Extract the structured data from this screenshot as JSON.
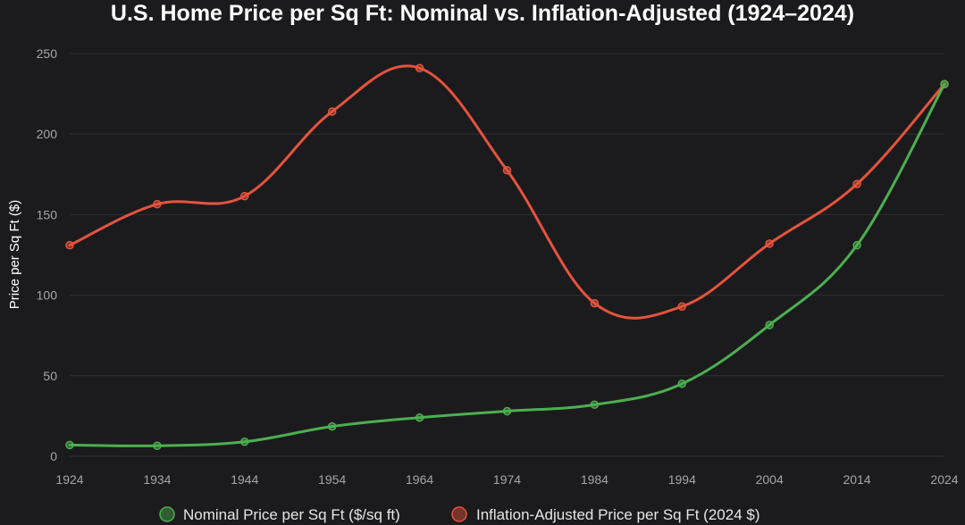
{
  "colors": {
    "background": "#1b1b1d",
    "nominal": "#4caf50",
    "adjusted": "#e5533d",
    "grid": "#2f2f33"
  },
  "chart_data": {
    "type": "line",
    "title": "U.S. Home Price per Sq Ft: Nominal vs. Inflation-Adjusted (1924–2024)",
    "xlabel": "",
    "ylabel": "Price per Sq Ft ($)",
    "categories": [
      "1924",
      "1934",
      "1944",
      "1954",
      "1964",
      "1974",
      "1984",
      "1994",
      "2004",
      "2014",
      "2024"
    ],
    "ylim": [
      0,
      250
    ],
    "yticks": [
      "0",
      "50",
      "100",
      "150",
      "200",
      "250"
    ],
    "grid": true,
    "legend_position": "bottom",
    "series": [
      {
        "name": "Nominal Price per Sq Ft ($/sq ft)",
        "color": "#4caf50",
        "values": [
          7,
          6.5,
          9,
          18.5,
          24,
          28,
          32,
          45,
          81.5,
          131,
          231
        ]
      },
      {
        "name": "Inflation-Adjusted Price per Sq Ft (2024 $)",
        "color": "#e5533d",
        "values": [
          131,
          156.5,
          161.5,
          214,
          241,
          177.5,
          95,
          93,
          132,
          169,
          231
        ]
      }
    ]
  }
}
